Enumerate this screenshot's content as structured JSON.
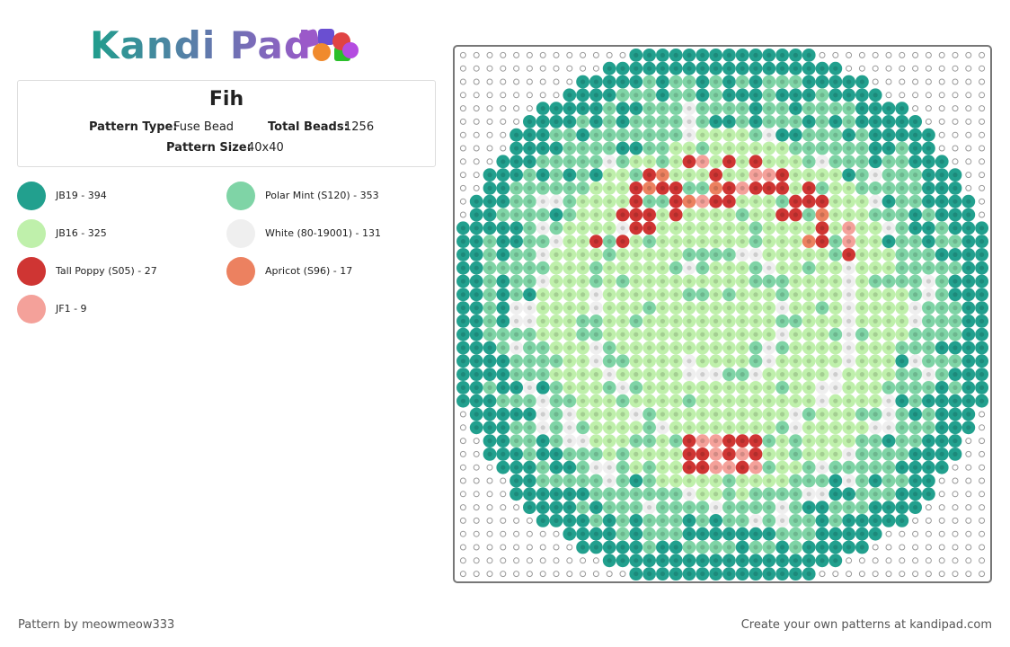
{
  "header": {
    "logo": "Kandi Pad",
    "title": "Fih",
    "pattern_type_label": "Pattern Type:",
    "pattern_type": "Fuse Bead",
    "total_beads_label": "Total Beads:",
    "total_beads": 1256,
    "pattern_size_label": "Pattern Size:",
    "pattern_size": "40x40"
  },
  "colors": [
    {
      "label": "JB19 - 394",
      "color": "#22a08e"
    },
    {
      "label": "JB16 - 325",
      "color": "#bff0ab"
    },
    {
      "label": "Tall Poppy (S05) - 27",
      "color": "#cf3533"
    },
    {
      "label": "JF1 - 9",
      "color": "#f4a19a"
    },
    {
      "label": "Polar Mint (S120) - 353",
      "color": "#7fd4a6"
    },
    {
      "label": "White (80-19001) - 131",
      "color": "#efefef"
    },
    {
      "label": "Apricot (S96) - 17",
      "color": "#ec8160"
    }
  ],
  "footer": {
    "author": "Pattern by meowmeow333",
    "credit": "Create your own patterns at kandipad.com"
  }
}
